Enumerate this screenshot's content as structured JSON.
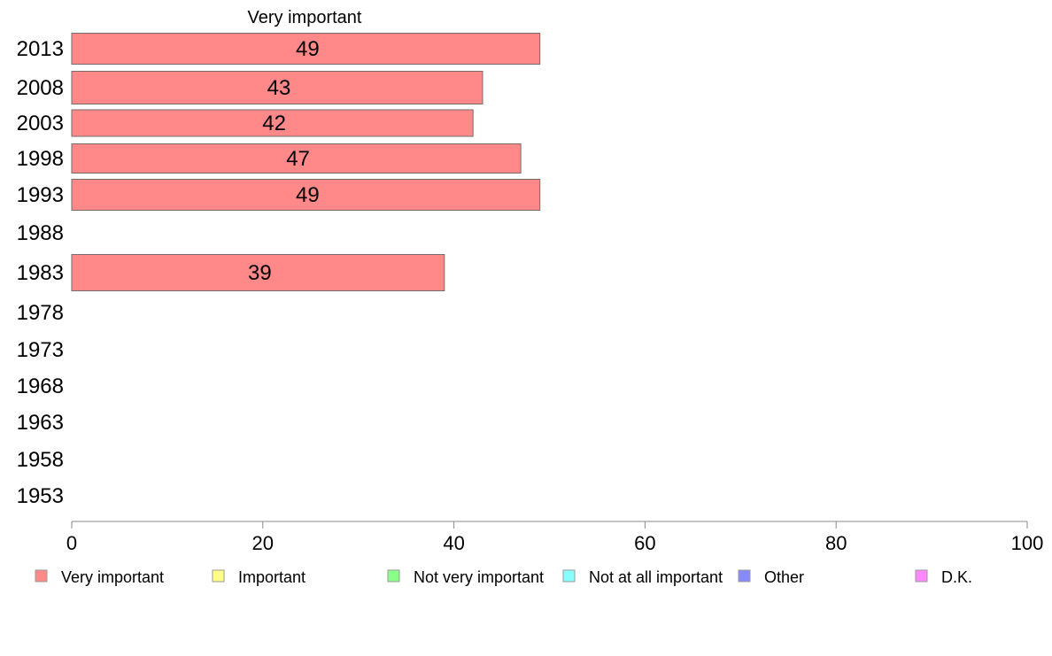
{
  "chart_data": {
    "type": "bar",
    "orientation": "horizontal",
    "title": "Very important",
    "categories": [
      "2013",
      "2008",
      "2003",
      "1998",
      "1993",
      "1988",
      "1983",
      "1978",
      "1973",
      "1968",
      "1963",
      "1958",
      "1953"
    ],
    "series": [
      {
        "name": "Very important",
        "color": "#FF8888",
        "values": [
          49,
          43,
          42,
          47,
          49,
          null,
          39,
          null,
          null,
          null,
          null,
          null,
          null
        ]
      }
    ],
    "xlim": [
      0,
      100
    ],
    "xticks": [
      0,
      20,
      40,
      60,
      80,
      100
    ],
    "grid": false,
    "legend": {
      "position": "bottom",
      "items": [
        {
          "label": "Very important",
          "color": "#FF8888"
        },
        {
          "label": "Important",
          "color": "#FFFF88"
        },
        {
          "label": "Not very important",
          "color": "#88FF88"
        },
        {
          "label": "Not at all important",
          "color": "#88FFFF"
        },
        {
          "label": "Other",
          "color": "#8888FF"
        },
        {
          "label": "D.K.",
          "color": "#FF88FF"
        }
      ]
    }
  }
}
